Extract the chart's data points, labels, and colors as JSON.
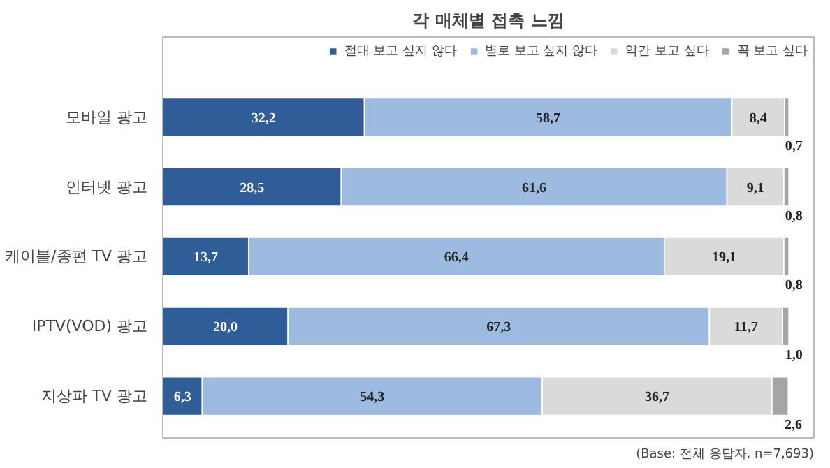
{
  "chart_data": {
    "type": "bar",
    "orientation": "horizontal",
    "stacked": true,
    "title": "각 매체별 접촉 느낌",
    "categories": [
      "모바일 광고",
      "인터넷 광고",
      "케이블/종편 TV 광고",
      "IPTV(VOD) 광고",
      "지상파 TV 광고"
    ],
    "series": [
      {
        "name": "절대 보고 싶지 않다",
        "color": "#2f5d97",
        "values": [
          32.2,
          28.5,
          13.7,
          20.0,
          6.3
        ],
        "value_labels": [
          "32,2",
          "28,5",
          "13,7",
          "20,0",
          "6,3"
        ]
      },
      {
        "name": "별로 보고 싶지 않다",
        "color": "#9dbbe0",
        "values": [
          58.7,
          61.6,
          66.4,
          67.3,
          54.3
        ],
        "value_labels": [
          "58,7",
          "61,6",
          "66,4",
          "67,3",
          "54,3"
        ]
      },
      {
        "name": "약간 보고 싶다",
        "color": "#dadada",
        "values": [
          8.4,
          9.1,
          19.1,
          11.7,
          36.7
        ],
        "value_labels": [
          "8,4",
          "9,1",
          "19,1",
          "11,7",
          "36,7"
        ]
      },
      {
        "name": "꼭 보고 싶다",
        "color": "#a6a6a6",
        "values": [
          0.7,
          0.8,
          0.8,
          1.0,
          2.6
        ],
        "value_labels": [
          "0,7",
          "0,8",
          "0,8",
          "1,0",
          "2,6"
        ]
      }
    ],
    "legend": "top right",
    "grid": false,
    "annotations": [
      "(Base: 전체 응답자, n=7,693)"
    ]
  }
}
